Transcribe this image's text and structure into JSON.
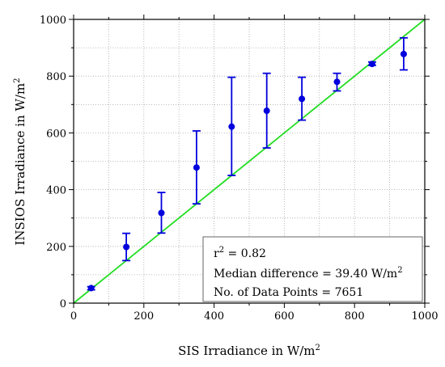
{
  "chart_data": {
    "type": "scatter",
    "title": "",
    "xlabel": "SIS Irradiance in W/m",
    "xlabel_superscript": "2",
    "ylabel": "INSIOS Irradiance in W/m",
    "ylabel_superscript": "2",
    "xlim": [
      0,
      1000
    ],
    "ylim": [
      0,
      1000
    ],
    "x_ticks": [
      0,
      200,
      400,
      600,
      800,
      1000
    ],
    "y_ticks": [
      0,
      200,
      400,
      600,
      800,
      1000
    ],
    "x_tick_labels": [
      "0",
      "200",
      "400",
      "600",
      "800",
      "1000"
    ],
    "y_tick_labels": [
      "0",
      "200",
      "400",
      "600",
      "800",
      "1000"
    ],
    "grid": true,
    "series": [
      {
        "x": [
          50,
          150,
          250,
          350,
          450,
          550,
          650,
          750,
          850,
          940
        ],
        "y": [
          53,
          198,
          318,
          478,
          622,
          678,
          720,
          780,
          843,
          878
        ],
        "y_err_low": [
          47,
          150,
          247,
          350,
          450,
          547,
          645,
          748,
          838,
          822
        ],
        "y_err_high": [
          58,
          246,
          390,
          607,
          796,
          810,
          796,
          810,
          850,
          935
        ],
        "color": "#0000dd"
      }
    ],
    "reference_line": {
      "x": [
        0,
        1000
      ],
      "y": [
        0,
        1000
      ],
      "color": "#22dd22"
    },
    "annotations": {
      "r2_prefix": "r",
      "r2_superscript": "2",
      "r2_value": " = 0.82",
      "median_text": "Median difference = 39.40 W/m",
      "median_superscript": "2",
      "count_text": "No. of Data Points = 7651",
      "placement": "bottom-right"
    }
  }
}
